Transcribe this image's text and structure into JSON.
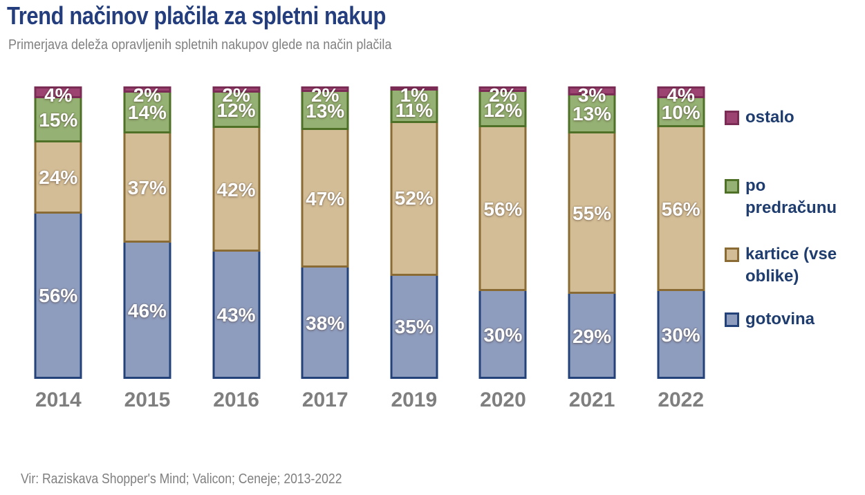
{
  "title": "Trend načinov plačila za spletni nakup",
  "subtitle": "Primerjava deleža opravljenih spletnih nakupov glede na način plačila",
  "source": "Vir: Raziskava Shopper's Mind; Valicon; Ceneje; 2013-2022",
  "colors": {
    "title_text": "#233d7d",
    "subtitle_text": "#808080",
    "tick_text": "#7f7f7f",
    "legend_text": "#1e3c6e",
    "bar_label_text": "#ffffff",
    "background": "#ffffff"
  },
  "chart_data": {
    "type": "bar",
    "stacked": true,
    "orientation": "vertical",
    "title": "Trend načinov plačila za spletni nakup",
    "subtitle": "Primerjava deleža opravljenih spletnih nakupov glede na način plačila",
    "categories": [
      "2014",
      "2015",
      "2016",
      "2017",
      "2019",
      "2020",
      "2021",
      "2022"
    ],
    "series": [
      {
        "name": "gotovina",
        "fill": "#8e9cbd",
        "border": "#24427a",
        "values": [
          56,
          46,
          43,
          38,
          35,
          30,
          29,
          30
        ]
      },
      {
        "name": "kartice (vse oblike)",
        "fill": "#d3bd96",
        "border": "#8a6b33",
        "values": [
          24,
          37,
          42,
          47,
          52,
          56,
          55,
          56
        ]
      },
      {
        "name": "po predračunu",
        "fill": "#95b173",
        "border": "#4e7027",
        "values": [
          15,
          14,
          12,
          13,
          11,
          12,
          13,
          10
        ]
      },
      {
        "name": "ostalo",
        "fill": "#9c4372",
        "border": "#7a2c55",
        "values": [
          4,
          2,
          2,
          2,
          1,
          2,
          3,
          4
        ]
      }
    ],
    "value_suffix": "%",
    "data_labels": true,
    "grid": false,
    "y_axis_visible": false,
    "ylim": [
      0,
      100
    ],
    "legend_position": "right",
    "legend_order": [
      "ostalo",
      "po predračunu",
      "kartice (vse oblike)",
      "gotovina"
    ]
  }
}
